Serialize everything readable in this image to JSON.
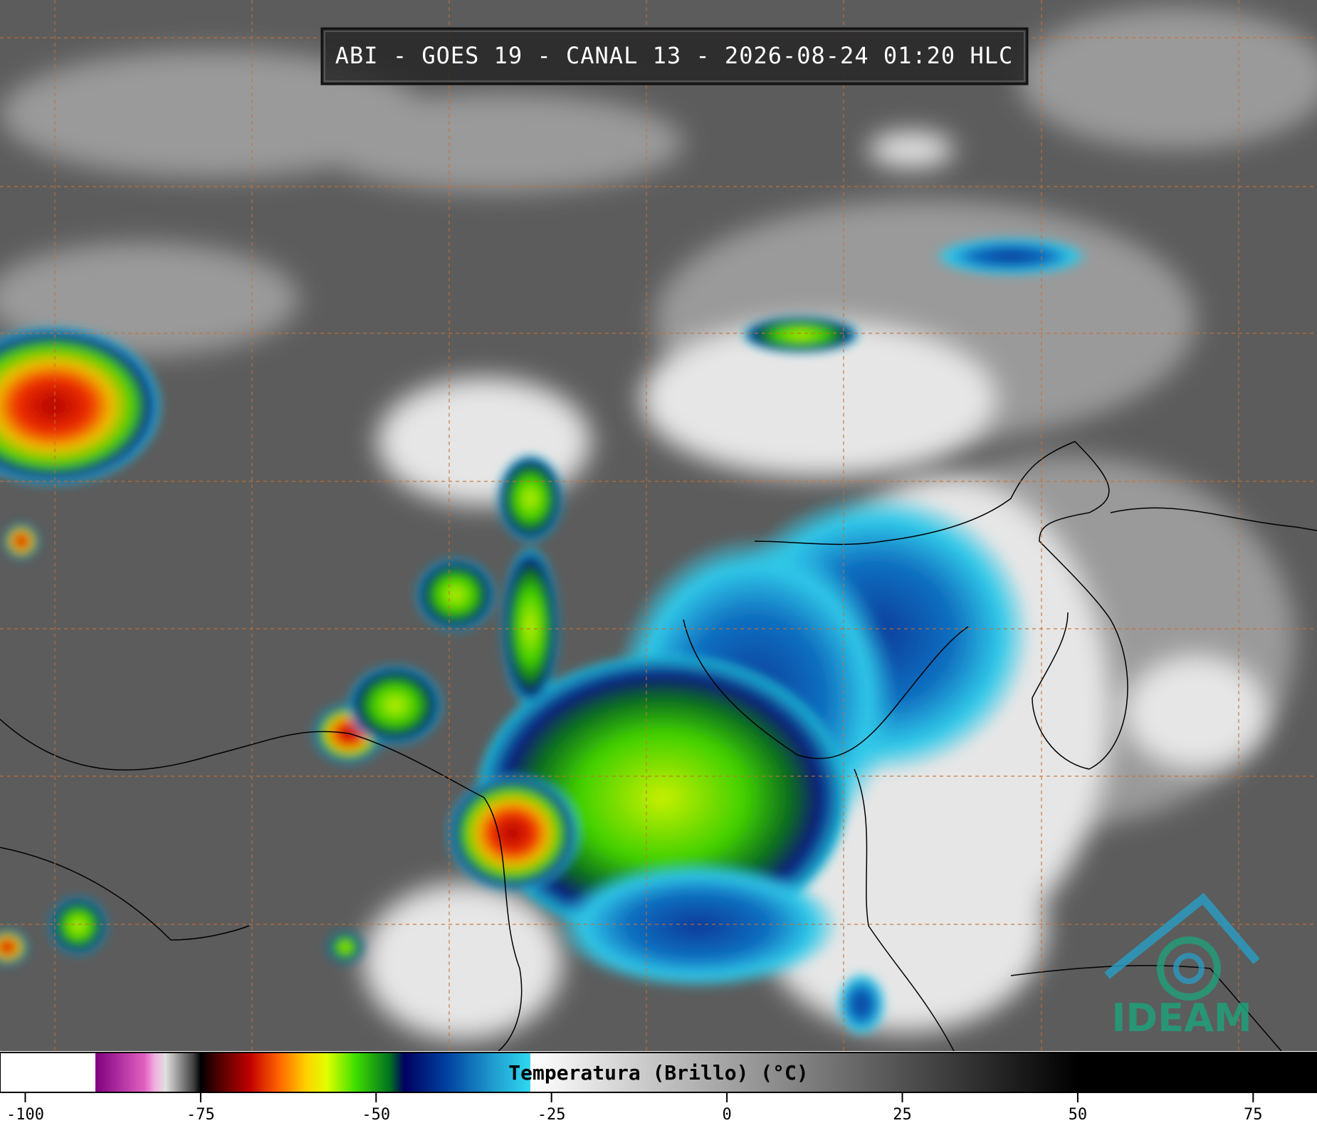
{
  "title": "ABI - GOES 19 - CANAL 13 - 2026-08-24 01:20 HLC",
  "colorbar": {
    "label": "Temperatura (Brillo) (°C)",
    "lim": [
      -103.6,
      84.1
    ],
    "ticks": [
      -100,
      -75,
      -50,
      -25,
      0,
      25,
      50,
      75
    ]
  },
  "logo": "IDEAM"
}
